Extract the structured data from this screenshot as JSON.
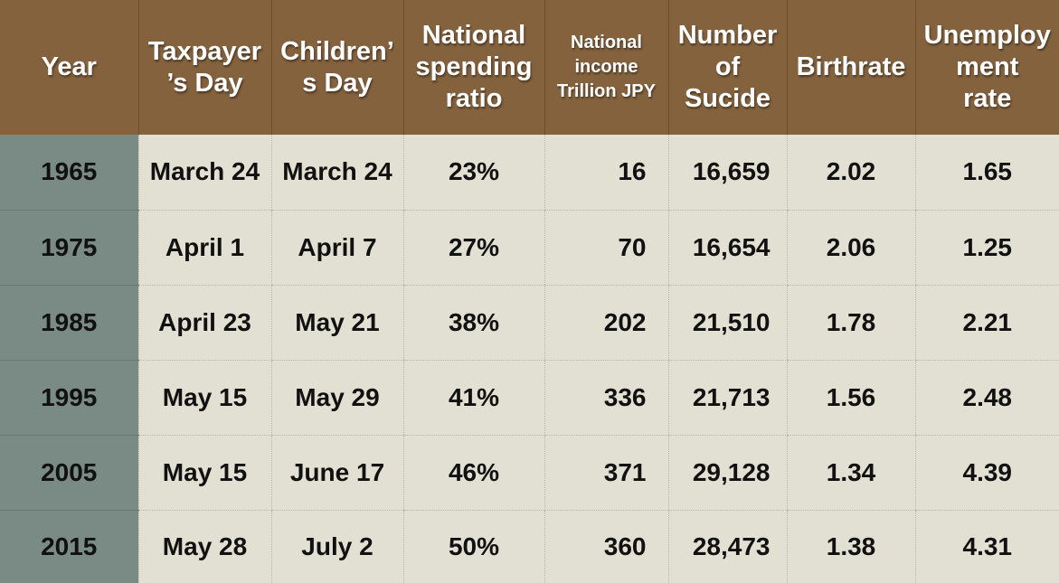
{
  "headers": {
    "year": "Year",
    "taxpayer_line1": "Taxpayer",
    "taxpayer_line2": "’s Day",
    "children_line1": "Children’",
    "children_line2": "s Day",
    "spending_line1": "National",
    "spending_line2": "spending",
    "spending_line3": "ratio",
    "income_line1": "National",
    "income_line2": "income",
    "income_line3": "Trillion JPY",
    "suicide_line1": "Number",
    "suicide_line2": "of",
    "suicide_line3": "Sucide",
    "birthrate": "Birthrate",
    "unemp_line1": "Unemploy",
    "unemp_line2": "ment",
    "unemp_line3": "rate"
  },
  "rows": [
    {
      "year": "1965",
      "taxpayer": "March 24",
      "children": "March 24",
      "spending": "23%",
      "income": "16",
      "suicide": "16,659",
      "birthrate": "2.02",
      "unemployment": "1.65"
    },
    {
      "year": "1975",
      "taxpayer": "April 1",
      "children": "April 7",
      "spending": "27%",
      "income": "70",
      "suicide": "16,654",
      "birthrate": "2.06",
      "unemployment": "1.25"
    },
    {
      "year": "1985",
      "taxpayer": "April 23",
      "children": "May 21",
      "spending": "38%",
      "income": "202",
      "suicide": "21,510",
      "birthrate": "1.78",
      "unemployment": "2.21"
    },
    {
      "year": "1995",
      "taxpayer": "May 15",
      "children": "May 29",
      "spending": "41%",
      "income": "336",
      "suicide": "21,713",
      "birthrate": "1.56",
      "unemployment": "2.48"
    },
    {
      "year": "2005",
      "taxpayer": "May 15",
      "children": "June 17",
      "spending": "46%",
      "income": "371",
      "suicide": "29,128",
      "birthrate": "1.34",
      "unemployment": "4.39"
    },
    {
      "year": "2015",
      "taxpayer": "May 28",
      "children": "July 2",
      "spending": "50%",
      "income": "360",
      "suicide": "28,473",
      "birthrate": "1.38",
      "unemployment": "4.31"
    }
  ],
  "colors": {
    "header_bg": "#84623e",
    "year_col_bg": "#7a8a85",
    "body_bg": "#e2e0d3"
  }
}
